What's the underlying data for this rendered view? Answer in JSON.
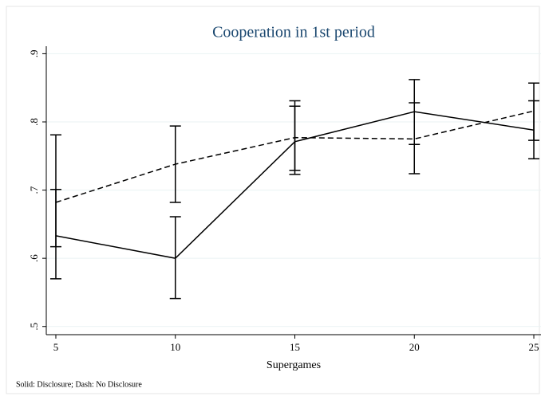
{
  "chart_data": {
    "type": "line",
    "title": "Cooperation in 1st period",
    "xlabel": "Supergames",
    "note": "Solid: Disclosure; Dash: No Disclosure",
    "x": [
      5,
      10,
      15,
      20,
      25
    ],
    "series": [
      {
        "color": "#000000",
        "dash": false,
        "values": [
          0.633,
          0.6,
          0.771,
          0.815,
          0.788
        ],
        "lower": [
          0.57,
          0.541,
          0.723,
          0.724,
          0.746
        ],
        "upper": [
          0.701,
          0.661,
          0.823,
          0.862,
          0.831
        ]
      },
      {
        "color": "#000000",
        "dash": true,
        "values": [
          0.682,
          0.738,
          0.777,
          0.775,
          0.816
        ],
        "lower": [
          0.617,
          0.682,
          0.729,
          0.767,
          0.773
        ],
        "upper": [
          0.781,
          0.794,
          0.831,
          0.828,
          0.857
        ]
      }
    ],
    "xlim": [
      4.6,
      25.3
    ],
    "xticks": [
      5,
      10,
      15,
      20,
      25
    ],
    "ylim": [
      0.488,
      0.911
    ],
    "yticks": [
      {
        "value": 0.5,
        "label": ".5"
      },
      {
        "value": 0.6,
        "label": ".6"
      },
      {
        "value": 0.7,
        "label": ".7"
      },
      {
        "value": 0.8,
        "label": ".8"
      },
      {
        "value": 0.9,
        "label": ".9"
      }
    ],
    "grid": true,
    "title_color": "#1a476f"
  }
}
